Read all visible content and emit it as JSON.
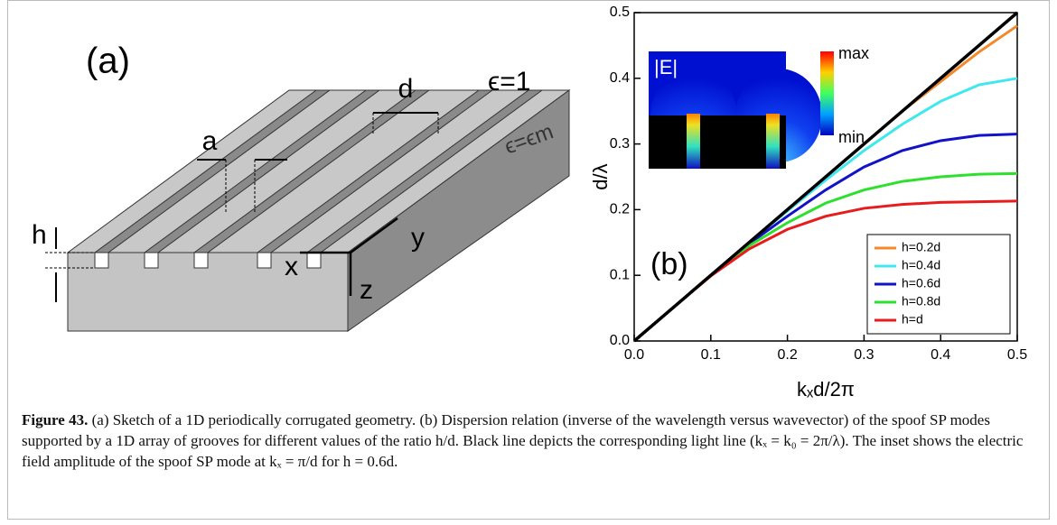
{
  "panel_a": {
    "label": "(a)",
    "d": "d",
    "a": "a",
    "h": "h",
    "eps_top": "ϵ=1",
    "eps_metal": "ϵ=ϵm",
    "axis_x": "x",
    "axis_y": "y",
    "axis_z": "z"
  },
  "chart_data": {
    "type": "line",
    "panel_label": "(b)",
    "x_label": "kₓd/2π",
    "y_label": "d/λ",
    "inset": {
      "title": "|E|",
      "max": "max",
      "min": "min"
    },
    "xlim": [
      0,
      0.5
    ],
    "ylim": [
      0,
      0.5
    ],
    "xticks": [
      {
        "value": 0,
        "label": "0.0"
      },
      0.1,
      0.2,
      0.3,
      0.4,
      0.5
    ],
    "yticks": [
      {
        "value": 0,
        "label": "0.0"
      },
      0.1,
      0.2,
      0.3,
      0.4,
      0.5
    ],
    "legend": "bottom-right",
    "light_line": {
      "color": "#000000",
      "x": [
        0,
        0.5
      ],
      "values": [
        0,
        0.5
      ]
    },
    "x": [
      0,
      0.05,
      0.1,
      0.15,
      0.2,
      0.25,
      0.3,
      0.35,
      0.4,
      0.45,
      0.5
    ],
    "series": [
      {
        "name": "h=0.2d",
        "color": "#f5892a",
        "values": [
          0,
          0.05,
          0.1,
          0.15,
          0.2,
          0.25,
          0.3,
          0.35,
          0.395,
          0.44,
          0.48
        ]
      },
      {
        "name": "h=0.4d",
        "color": "#3fe8ee",
        "values": [
          0,
          0.05,
          0.1,
          0.15,
          0.198,
          0.245,
          0.29,
          0.33,
          0.365,
          0.39,
          0.4
        ]
      },
      {
        "name": "h=0.6d",
        "color": "#1212c8",
        "values": [
          0,
          0.05,
          0.1,
          0.148,
          0.19,
          0.23,
          0.265,
          0.29,
          0.305,
          0.313,
          0.315
        ]
      },
      {
        "name": "h=0.8d",
        "color": "#2ee02e",
        "values": [
          0,
          0.05,
          0.1,
          0.145,
          0.18,
          0.21,
          0.23,
          0.243,
          0.25,
          0.254,
          0.255
        ]
      },
      {
        "name": "h=d",
        "color": "#e81c1c",
        "values": [
          0,
          0.05,
          0.099,
          0.14,
          0.17,
          0.19,
          0.202,
          0.208,
          0.211,
          0.212,
          0.213
        ]
      }
    ]
  },
  "caption": {
    "label": "Figure 43.",
    "text": "(a) Sketch of a 1D periodically corrugated geometry. (b) Dispersion relation (inverse of the wavelength versus wavevector) of the spoof SP modes supported by a 1D array of grooves for different values of the ratio h/d. Black line depicts the corresponding light line (kₓ = k₀ = 2π/λ). The inset shows the electric field amplitude of the spoof SP mode at kₓ = π/d for h = 0.6d."
  }
}
